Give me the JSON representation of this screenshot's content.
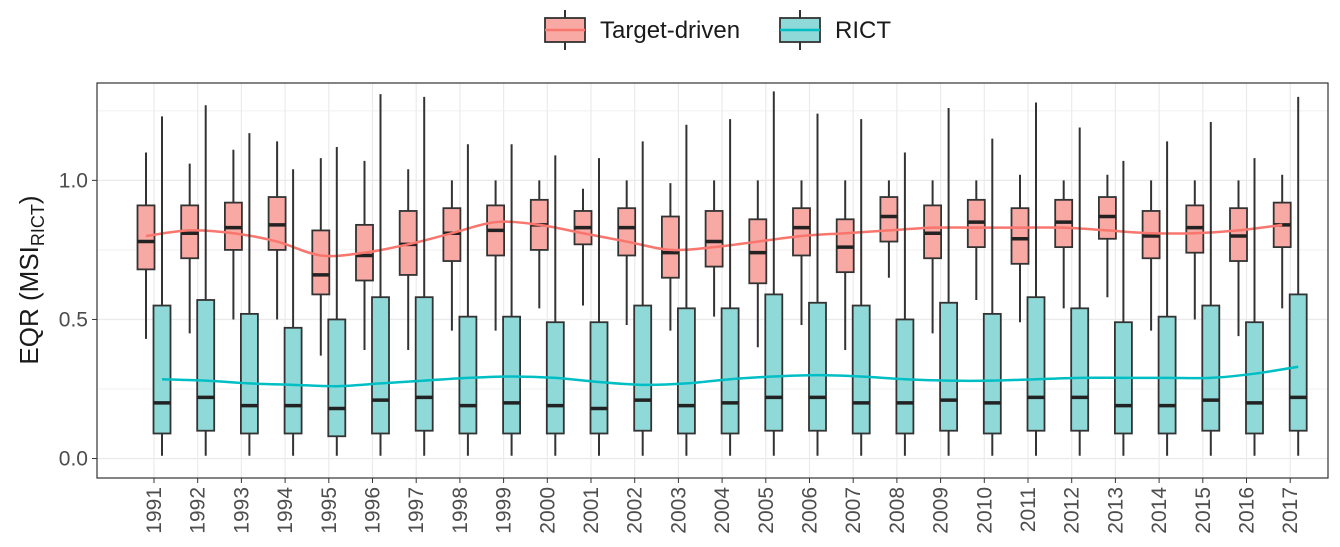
{
  "chart_data": {
    "type": "box",
    "y_label": "EQR (MSI",
    "y_label_sub": "RICT",
    "y_label_close": ")",
    "categories": [
      "1991",
      "1992",
      "1993",
      "1994",
      "1995",
      "1996",
      "1997",
      "1998",
      "1999",
      "2000",
      "2001",
      "2002",
      "2003",
      "2004",
      "2005",
      "2006",
      "2007",
      "2008",
      "2009",
      "2010",
      "2011",
      "2012",
      "2013",
      "2014",
      "2015",
      "2016",
      "2017"
    ],
    "ylim": [
      -0.07,
      1.35
    ],
    "yticks": [
      {
        "value": 0,
        "label": "0.0"
      },
      0.5,
      {
        "value": 1,
        "label": "1.0"
      }
    ],
    "grid": true,
    "legend_position": "top",
    "series": [
      {
        "name": "Target-driven",
        "color": "#f8a9a3",
        "line_color": "#f8766d",
        "low": [
          0.43,
          0.45,
          0.5,
          0.5,
          0.37,
          0.39,
          0.39,
          0.46,
          0.46,
          0.54,
          0.55,
          0.48,
          0.46,
          0.51,
          0.4,
          0.48,
          0.39,
          0.65,
          0.45,
          0.57,
          0.49,
          0.54,
          0.58,
          0.46,
          0.5,
          0.44,
          0.54
        ],
        "q1": [
          0.68,
          0.72,
          0.75,
          0.75,
          0.59,
          0.64,
          0.66,
          0.71,
          0.73,
          0.75,
          0.77,
          0.73,
          0.65,
          0.69,
          0.63,
          0.73,
          0.67,
          0.78,
          0.72,
          0.76,
          0.7,
          0.76,
          0.79,
          0.72,
          0.74,
          0.71,
          0.76
        ],
        "median": [
          0.78,
          0.81,
          0.83,
          0.84,
          0.66,
          0.73,
          0.77,
          0.81,
          0.82,
          0.84,
          0.83,
          0.83,
          0.74,
          0.78,
          0.74,
          0.83,
          0.76,
          0.87,
          0.81,
          0.85,
          0.79,
          0.85,
          0.87,
          0.8,
          0.83,
          0.8,
          0.84
        ],
        "q3": [
          0.91,
          0.91,
          0.92,
          0.94,
          0.82,
          0.84,
          0.89,
          0.9,
          0.91,
          0.93,
          0.89,
          0.9,
          0.87,
          0.89,
          0.86,
          0.9,
          0.86,
          0.94,
          0.91,
          0.93,
          0.9,
          0.93,
          0.94,
          0.89,
          0.91,
          0.9,
          0.92
        ],
        "high": [
          1.1,
          1.06,
          1.11,
          1.14,
          1.08,
          1.07,
          1.04,
          1.0,
          1.0,
          1.0,
          0.97,
          1.0,
          0.99,
          1.0,
          1.0,
          1.0,
          1.0,
          1.0,
          1.0,
          1.0,
          1.02,
          1.0,
          1.02,
          1.0,
          1.0,
          1.0,
          1.02
        ],
        "trend": [
          0.8,
          0.82,
          0.81,
          0.78,
          0.73,
          0.74,
          0.77,
          0.81,
          0.85,
          0.84,
          0.81,
          0.78,
          0.75,
          0.76,
          0.78,
          0.8,
          0.81,
          0.82,
          0.83,
          0.83,
          0.83,
          0.83,
          0.82,
          0.81,
          0.81,
          0.82,
          0.84
        ]
      },
      {
        "name": "RICT",
        "color": "#8fd9d9",
        "line_color": "#00bfc4",
        "low": [
          0.01,
          0.01,
          0.01,
          0.01,
          0.01,
          0.01,
          0.01,
          0.01,
          0.01,
          0.01,
          0.01,
          0.01,
          0.01,
          0.01,
          0.01,
          0.01,
          0.01,
          0.01,
          0.01,
          0.01,
          0.01,
          0.01,
          0.01,
          0.01,
          0.01,
          0.01,
          0.01
        ],
        "q1": [
          0.09,
          0.1,
          0.09,
          0.09,
          0.08,
          0.09,
          0.1,
          0.09,
          0.09,
          0.09,
          0.09,
          0.1,
          0.09,
          0.09,
          0.1,
          0.1,
          0.09,
          0.09,
          0.1,
          0.09,
          0.1,
          0.1,
          0.09,
          0.09,
          0.1,
          0.09,
          0.1
        ],
        "median": [
          0.2,
          0.22,
          0.19,
          0.19,
          0.18,
          0.21,
          0.22,
          0.19,
          0.2,
          0.19,
          0.18,
          0.21,
          0.19,
          0.2,
          0.22,
          0.22,
          0.2,
          0.2,
          0.21,
          0.2,
          0.22,
          0.22,
          0.19,
          0.19,
          0.21,
          0.2,
          0.22
        ],
        "q3": [
          0.55,
          0.57,
          0.52,
          0.47,
          0.5,
          0.58,
          0.58,
          0.51,
          0.51,
          0.49,
          0.49,
          0.55,
          0.54,
          0.54,
          0.59,
          0.56,
          0.55,
          0.5,
          0.56,
          0.52,
          0.58,
          0.54,
          0.49,
          0.51,
          0.55,
          0.49,
          0.59
        ],
        "high": [
          1.23,
          1.27,
          1.17,
          1.04,
          1.12,
          1.31,
          1.3,
          1.13,
          1.13,
          1.09,
          1.08,
          1.14,
          1.2,
          1.22,
          1.32,
          1.24,
          1.22,
          1.1,
          1.26,
          1.15,
          1.28,
          1.19,
          1.07,
          1.14,
          1.21,
          1.08,
          1.3
        ],
        "trend": [
          0.285,
          0.28,
          0.27,
          0.265,
          0.26,
          0.27,
          0.28,
          0.29,
          0.295,
          0.29,
          0.275,
          0.265,
          0.27,
          0.285,
          0.295,
          0.3,
          0.295,
          0.285,
          0.28,
          0.28,
          0.285,
          0.29,
          0.29,
          0.29,
          0.29,
          0.305,
          0.33
        ]
      }
    ]
  }
}
